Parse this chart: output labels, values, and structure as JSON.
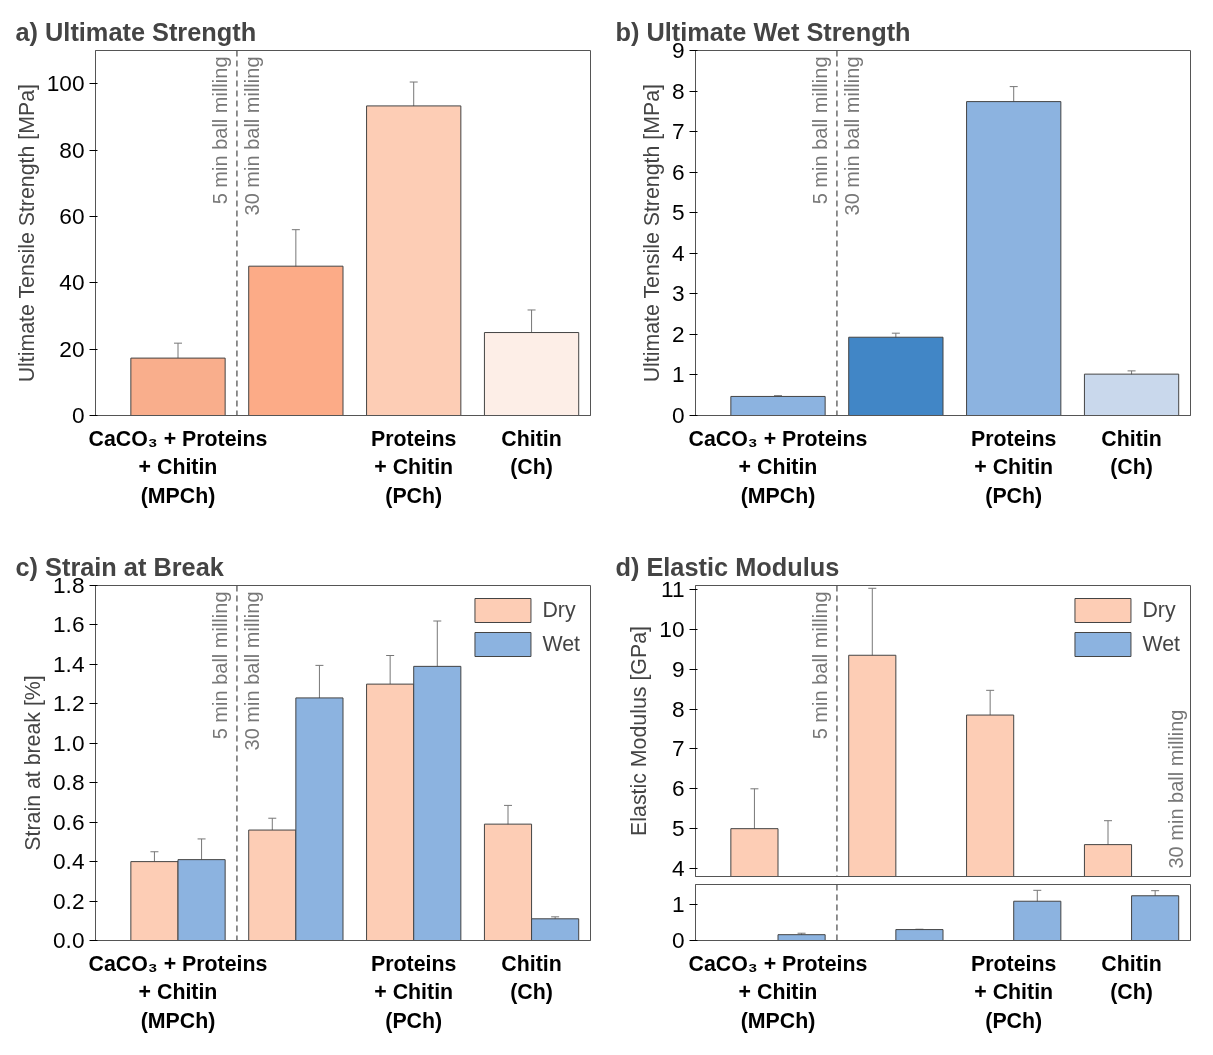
{
  "chart_data": [
    {
      "type": "bar",
      "title": "a) Ultimate Strength",
      "ylabel": "Ultimate Tensile Strength [MPa]",
      "categories": [
        "CaCO₃ + Proteins\n+ Chitin\n(MPCh)",
        null,
        "Proteins\n+ Chitin\n(PCh)",
        "Chitin\n(Ch)"
      ],
      "values": [
        17.3,
        45,
        93.3,
        25
      ],
      "errors": [
        4.5,
        11,
        7.2,
        6.8
      ],
      "colors": [
        "#f9ae8c",
        "#fcab87",
        "#fdcdb5",
        "#fdeee7"
      ],
      "ylim": [
        0,
        110
      ],
      "yticks": [
        0,
        20,
        40,
        60,
        80,
        100
      ],
      "annotations": [
        "5 min ball milling",
        "30 min ball milling"
      ]
    },
    {
      "type": "bar",
      "title": "b) Ultimate Wet Strength",
      "ylabel": "Ultimate Tensile Strength [MPa]",
      "categories": [
        "CaCO₃ + Proteins\n+ Chitin\n(MPCh)",
        null,
        "Proteins\n+ Chitin\n(PCh)",
        "Chitin\n(Ch)"
      ],
      "values": [
        0.47,
        1.93,
        7.74,
        1.02
      ],
      "errors": [
        0.02,
        0.1,
        0.37,
        0.08
      ],
      "colors": [
        "#8cb3e0",
        "#4186c6",
        "#8cb3e0",
        "#c9d8ec"
      ],
      "ylim": [
        0,
        9
      ],
      "yticks": [
        0,
        1,
        2,
        3,
        4,
        5,
        6,
        7,
        8,
        9
      ],
      "annotations": [
        "5 min ball milling",
        "30 min ball milling"
      ]
    },
    {
      "type": "bar",
      "title": "c) Strain at Break",
      "ylabel": "Strain at break [%]",
      "categories": [
        "CaCO₃ + Proteins\n+ Chitin\n(MPCh)",
        null,
        "Proteins\n+ Chitin\n(PCh)",
        "Chitin\n(Ch)"
      ],
      "series": [
        {
          "name": "Dry",
          "color": "#fdcdb5",
          "values": [
            0.4,
            0.56,
            1.3,
            0.59
          ],
          "errors": [
            0.05,
            0.06,
            0.145,
            0.095
          ]
        },
        {
          "name": "Wet",
          "color": "#8cb3e0",
          "values": [
            0.41,
            1.23,
            1.39,
            0.11
          ],
          "errors": [
            0.105,
            0.165,
            0.23,
            0.01
          ]
        }
      ],
      "ylim": [
        0,
        1.8
      ],
      "yticks": [
        {
          "value": 0,
          "label": "0.0"
        },
        0.2,
        0.4,
        0.6,
        0.8,
        {
          "value": 1,
          "label": "1.0"
        },
        1.2,
        1.4,
        1.6,
        1.8
      ],
      "legend": "top right",
      "annotations": [
        "5 min ball milling",
        "30 min ball milling"
      ]
    },
    {
      "type": "bar",
      "title": "d) Elastic Modulus",
      "ylabel": "Elastic Modulus [GPa]",
      "series": [
        {
          "name": "Dry",
          "color": "#fdcdb5",
          "values": [
            5.0,
            9.35,
            7.85,
            4.6
          ],
          "errors": [
            1.0,
            1.68,
            0.62,
            0.6
          ]
        },
        {
          "name": "Wet",
          "color": "#8cb3e0",
          "values": [
            null,
            null,
            null,
            null
          ]
        }
      ],
      "ylim": [
        3.8,
        11.1
      ],
      "yticks": [
        4,
        5,
        6,
        7,
        8,
        9,
        10,
        11
      ],
      "legend": "top right",
      "tick_labels": "y",
      "annotations": [
        "5 min ball milling",
        "30 min ball milling"
      ]
    },
    {
      "type": "bar",
      "categories": [
        "CaCO₃ + Proteins\n+ Chitin\n(MPCh)",
        null,
        "Proteins\n+ Chitin\n(PCh)",
        "Chitin\n(Ch)"
      ],
      "series": [
        {
          "color": "#fdcdb5",
          "values": [
            null,
            null,
            null,
            null
          ]
        },
        {
          "color": "#8cb3e0",
          "values": [
            0.16,
            0.3,
            1.08,
            1.23
          ],
          "errors": [
            0.04,
            0.01,
            0.3,
            0.14
          ]
        }
      ],
      "ylim": [
        0,
        1.54
      ],
      "yticks": [
        0,
        1
      ]
    }
  ]
}
